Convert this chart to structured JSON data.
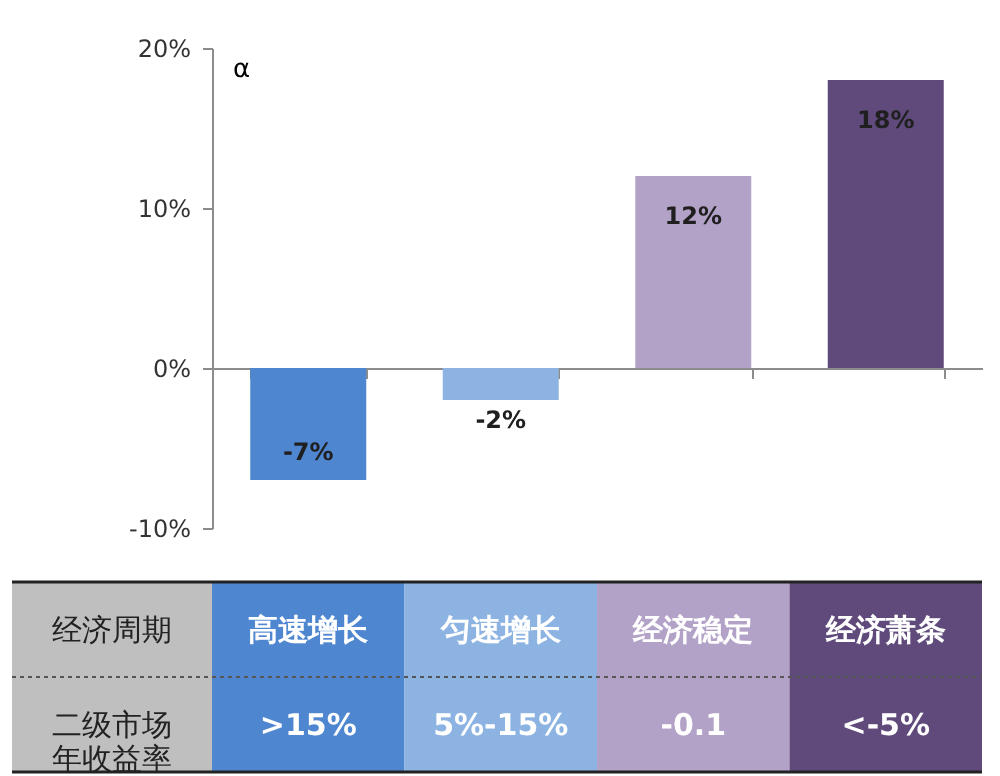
{
  "chart_data": {
    "type": "bar",
    "ylabel": "α",
    "xlabel": "经济周期",
    "categories": [
      "高速增长",
      "匀速增长",
      "经济稳定",
      "经济萧条"
    ],
    "values": [
      -7,
      -2,
      12,
      18
    ],
    "value_labels": [
      "-7%",
      "-2%",
      "12%",
      "18%"
    ],
    "colors": [
      "#4f86d0",
      "#8db3e2",
      "#b3a2c7",
      "#604a7b"
    ],
    "ylim": [
      -10,
      20
    ],
    "yticks": [
      {
        "value": -10,
        "label": "-10%"
      },
      {
        "value": 0,
        "label": "0%"
      },
      {
        "value": 10,
        "label": "10%"
      },
      {
        "value": 20,
        "label": "20%"
      }
    ],
    "annotations": [
      "二级市场年收益率",
      ">15%",
      "5%-15%",
      "-0.1",
      "<-5%"
    ]
  }
}
